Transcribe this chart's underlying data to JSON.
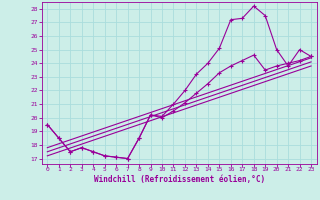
{
  "xlabel": "Windchill (Refroidissement éolien,°C)",
  "bg_color": "#cceee8",
  "grid_color": "#aadddd",
  "line_color": "#990099",
  "xlim": [
    -0.5,
    23.5
  ],
  "ylim": [
    16.6,
    28.5
  ],
  "yticks": [
    17,
    18,
    19,
    20,
    21,
    22,
    23,
    24,
    25,
    26,
    27,
    28
  ],
  "xticks": [
    0,
    1,
    2,
    3,
    4,
    5,
    6,
    7,
    8,
    9,
    10,
    11,
    12,
    13,
    14,
    15,
    16,
    17,
    18,
    19,
    20,
    21,
    22,
    23
  ],
  "series1_x": [
    0,
    1,
    2,
    3,
    4,
    5,
    6,
    7,
    8,
    9,
    10,
    11,
    12,
    13,
    14,
    15,
    16,
    17,
    18,
    19,
    20,
    21,
    22,
    23
  ],
  "series1_y": [
    19.5,
    18.5,
    17.5,
    17.8,
    17.5,
    17.2,
    17.1,
    17.0,
    18.5,
    20.2,
    20.1,
    21.0,
    22.0,
    23.2,
    24.0,
    25.1,
    27.2,
    27.3,
    28.2,
    27.5,
    25.0,
    23.8,
    25.0,
    24.5
  ],
  "series2_x": [
    0,
    1,
    2,
    3,
    4,
    5,
    6,
    7,
    8,
    9,
    10,
    11,
    12,
    13,
    14,
    15,
    16,
    17,
    18,
    19,
    20,
    21,
    22,
    23
  ],
  "series2_y": [
    19.5,
    18.5,
    17.5,
    17.8,
    17.5,
    17.2,
    17.1,
    17.0,
    18.5,
    20.2,
    20.0,
    20.5,
    21.1,
    21.8,
    22.5,
    23.3,
    23.8,
    24.2,
    24.6,
    23.5,
    23.8,
    24.0,
    24.2,
    24.5
  ],
  "series3_x": [
    0,
    23
  ],
  "series3_y": [
    17.2,
    23.8
  ],
  "series4_x": [
    0,
    23
  ],
  "series4_y": [
    17.5,
    24.1
  ],
  "series5_x": [
    0,
    23
  ],
  "series5_y": [
    17.8,
    24.4
  ]
}
